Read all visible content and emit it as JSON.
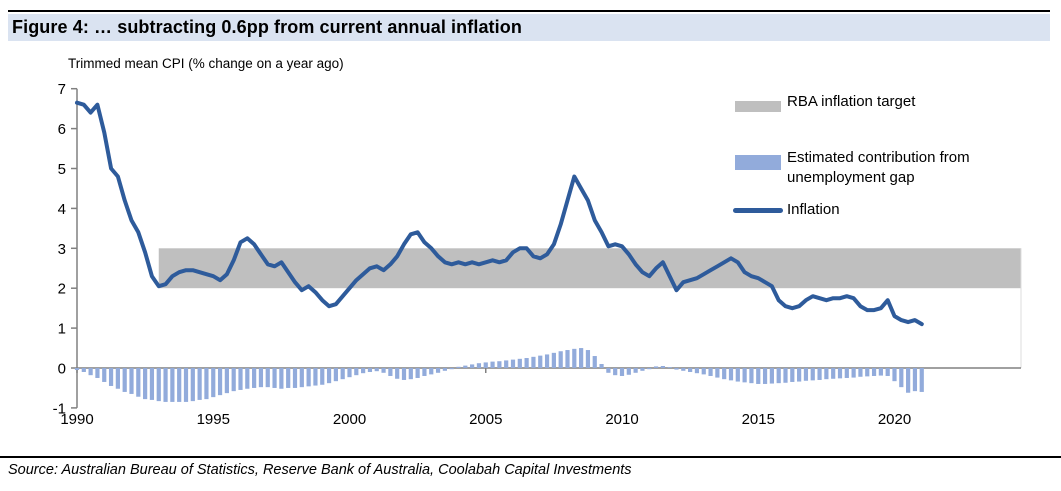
{
  "figure": {
    "title": "Figure 4: … subtracting 0.6pp from current annual inflation",
    "subtitle": "Trimmed mean CPI (% change on a year ago)",
    "source": "Source: Australian Bureau of Statistics, Reserve Bank of Australia, Coolabah Capital Investments"
  },
  "colors": {
    "title_highlight": "#dae3f1",
    "band": "#bfbfbf",
    "bars": "#92abdb",
    "line": "#2e5b9b",
    "axis": "#808080"
  },
  "legend": [
    {
      "label": "RBA inflation target",
      "type": "band",
      "color": "#bfbfbf"
    },
    {
      "label": "Estimated contribution from unemployment gap",
      "type": "bar",
      "color": "#92abdb"
    },
    {
      "label": "Inflation",
      "type": "line",
      "color": "#2e5b9b"
    }
  ],
  "chart_data": {
    "type": "line+bar",
    "title": "Trimmed mean CPI (% change on a year ago)",
    "xlabel": "",
    "ylabel": "",
    "x_start": 1990,
    "x_step": 0.25,
    "xlim": [
      1990,
      2024.6
    ],
    "ylim": [
      -1,
      7
    ],
    "y_ticks": [
      -1,
      0,
      1,
      2,
      3,
      4,
      5,
      6,
      7
    ],
    "x_ticks": [
      1990,
      1995,
      2000,
      2005,
      2010,
      2015,
      2020
    ],
    "grid": false,
    "legend_position": "right",
    "band": {
      "name": "RBA inflation target",
      "value_from": 2,
      "value_to": 3,
      "x_from": 1993,
      "x_to": 2024.6,
      "color": "#bfbfbf"
    },
    "series": [
      {
        "name": "Estimated contribution from unemployment gap",
        "type": "bar",
        "color": "#92abdb",
        "values": [
          -0.05,
          -0.1,
          -0.18,
          -0.25,
          -0.35,
          -0.45,
          -0.52,
          -0.6,
          -0.65,
          -0.72,
          -0.78,
          -0.8,
          -0.83,
          -0.85,
          -0.85,
          -0.85,
          -0.85,
          -0.83,
          -0.8,
          -0.78,
          -0.73,
          -0.68,
          -0.63,
          -0.58,
          -0.55,
          -0.52,
          -0.5,
          -0.48,
          -0.48,
          -0.5,
          -0.52,
          -0.5,
          -0.5,
          -0.48,
          -0.46,
          -0.44,
          -0.42,
          -0.38,
          -0.33,
          -0.28,
          -0.23,
          -0.18,
          -0.13,
          -0.1,
          -0.08,
          -0.12,
          -0.2,
          -0.27,
          -0.3,
          -0.28,
          -0.25,
          -0.2,
          -0.16,
          -0.12,
          -0.07,
          -0.03,
          0.03,
          0.06,
          0.09,
          0.12,
          0.14,
          0.16,
          0.17,
          0.19,
          0.21,
          0.23,
          0.25,
          0.28,
          0.31,
          0.34,
          0.38,
          0.42,
          0.45,
          0.48,
          0.5,
          0.45,
          0.3,
          0.1,
          -0.12,
          -0.18,
          -0.2,
          -0.17,
          -0.12,
          -0.07,
          -0.03,
          0.04,
          0.05,
          0.02,
          -0.04,
          -0.07,
          -0.1,
          -0.13,
          -0.16,
          -0.2,
          -0.24,
          -0.28,
          -0.31,
          -0.34,
          -0.36,
          -0.38,
          -0.4,
          -0.4,
          -0.39,
          -0.38,
          -0.37,
          -0.35,
          -0.34,
          -0.32,
          -0.31,
          -0.3,
          -0.28,
          -0.27,
          -0.26,
          -0.25,
          -0.24,
          -0.22,
          -0.21,
          -0.2,
          -0.19,
          -0.2,
          -0.33,
          -0.48,
          -0.62,
          -0.58,
          -0.6
        ]
      },
      {
        "name": "Inflation",
        "type": "line",
        "color": "#2e5b9b",
        "values": [
          6.65,
          6.6,
          6.4,
          6.6,
          5.9,
          5.0,
          4.8,
          4.2,
          3.7,
          3.4,
          2.9,
          2.3,
          2.05,
          2.1,
          2.3,
          2.4,
          2.45,
          2.45,
          2.4,
          2.35,
          2.3,
          2.2,
          2.35,
          2.7,
          3.15,
          3.25,
          3.1,
          2.85,
          2.6,
          2.55,
          2.65,
          2.4,
          2.15,
          1.95,
          2.05,
          1.9,
          1.7,
          1.55,
          1.6,
          1.8,
          2.0,
          2.2,
          2.35,
          2.5,
          2.55,
          2.45,
          2.6,
          2.8,
          3.1,
          3.35,
          3.4,
          3.15,
          3.0,
          2.8,
          2.65,
          2.6,
          2.65,
          2.6,
          2.65,
          2.6,
          2.65,
          2.7,
          2.65,
          2.7,
          2.9,
          3.0,
          3.0,
          2.8,
          2.75,
          2.85,
          3.1,
          3.6,
          4.2,
          4.8,
          4.5,
          4.2,
          3.7,
          3.4,
          3.05,
          3.1,
          3.05,
          2.85,
          2.6,
          2.4,
          2.3,
          2.5,
          2.65,
          2.3,
          1.95,
          2.15,
          2.2,
          2.25,
          2.35,
          2.45,
          2.55,
          2.65,
          2.75,
          2.65,
          2.4,
          2.3,
          2.25,
          2.15,
          2.05,
          1.7,
          1.55,
          1.5,
          1.55,
          1.7,
          1.8,
          1.75,
          1.7,
          1.75,
          1.75,
          1.8,
          1.75,
          1.55,
          1.45,
          1.45,
          1.5,
          1.7,
          1.3,
          1.2,
          1.15,
          1.2,
          1.1
        ]
      }
    ]
  }
}
